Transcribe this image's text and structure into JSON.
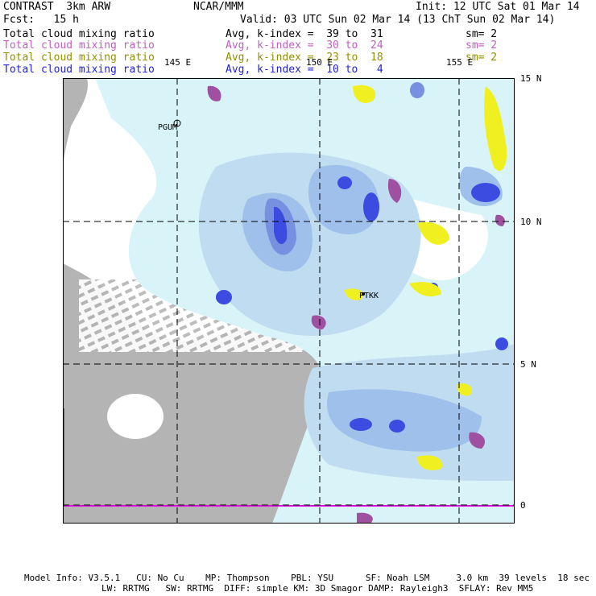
{
  "header": {
    "left1": "CONTRAST  3km ARW",
    "left2": "Fcst:   15 h",
    "center1": "NCAR/MMM",
    "right1": "Init: 12 UTC Sat 01 Mar 14",
    "right2": "Valid: 03 UTC Sun 02 Mar 14 (13 ChT Sun 02 Mar 14)"
  },
  "fields": [
    {
      "name": "Total cloud mixing ratio",
      "stat": "Avg, k-index =  39 to  31",
      "sm": "sm= 2",
      "color": "#000000"
    },
    {
      "name": "Total cloud mixing ratio",
      "stat": "Avg, k-index =  30 to  24",
      "sm": "sm= 2",
      "color": "#c060c0"
    },
    {
      "name": "Total cloud mixing ratio",
      "stat": "Avg, k-index =  23 to  18",
      "sm": "sm= 2",
      "color": "#909000"
    },
    {
      "name": "Total cloud mixing ratio",
      "stat": "Avg, k-index =  10 to   4",
      "sm": "",
      "color": "#2020e0"
    }
  ],
  "map": {
    "lon_labels": [
      "145 E",
      "150 E",
      "155 E"
    ],
    "lat_labels": [
      "15 N",
      "10 N",
      "5 N",
      "0"
    ],
    "stations": [
      "PGUM",
      "PTKK"
    ],
    "colors": {
      "gray": "#b4b4b4",
      "lightcyan": "#d8f4f8",
      "blue1": "#c0dcf0",
      "blue2": "#a0c0ec",
      "blue3": "#7890e0",
      "blue4": "#3c4ce0",
      "yellow": "#f0f020",
      "purple": "#a050a0",
      "magenta": "#e000e0"
    }
  },
  "footer": {
    "line1": "Model Info: V3.5.1   CU: No Cu    MP: Thompson    PBL: YSU      SF: Noah LSM     3.0 km  39 levels  18 sec",
    "line2": "LW: RRTMG   SW: RRTMG  DIFF: simple KM: 3D Smagor DAMP: Rayleigh3  SFLAY: Rev MM5"
  }
}
